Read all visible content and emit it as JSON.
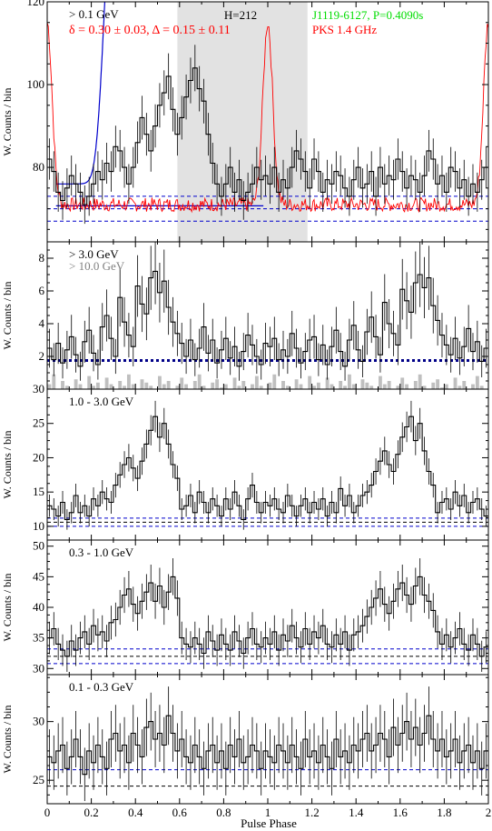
{
  "chart_data": [
    {
      "type": "line",
      "panel": "top",
      "ylabel": "W. Counts / bin",
      "ylim": [
        62,
        120
      ],
      "yticks": [
        80,
        100,
        120
      ],
      "energy_label": "> 0.1 GeV",
      "annotation_h": "H=212",
      "stats": "δ = 0.30 ± 0.03, Δ = 0.15 ± 0.11",
      "pulsar": "J1119-6127, P=0.4090s",
      "radio_label": "PKS 1.4 GHz",
      "offpulse_region": [
        0.59,
        1.18
      ],
      "background_levels": [
        73,
        70,
        67
      ],
      "colors": {
        "stats": "#ff0000",
        "radio": "#ff0000",
        "pulsar": "#00dd00",
        "fit": "#0000cc",
        "shade": "#e2e2e2"
      },
      "series": [
        {
          "name": "> 0.1 GeV",
          "x_range": [
            0,
            2
          ],
          "values": [
            82,
            79,
            74,
            72,
            75,
            78,
            76,
            74,
            71,
            73,
            76,
            79,
            77,
            81,
            79,
            85,
            84,
            80,
            76,
            80,
            86,
            92,
            88,
            84,
            90,
            95,
            98,
            102,
            94,
            88,
            92,
            97,
            101,
            104,
            99,
            96,
            88,
            81,
            76,
            73,
            76,
            80,
            74,
            77,
            72,
            74,
            76,
            80,
            77,
            78,
            76,
            80,
            74,
            77,
            75,
            80,
            84,
            82,
            79,
            75,
            82,
            79,
            74,
            77,
            76,
            79,
            78,
            75,
            73,
            77,
            80,
            75,
            76,
            79,
            73,
            80,
            76,
            78,
            77,
            82,
            79,
            75,
            78,
            77,
            74,
            78,
            84,
            82,
            76,
            78,
            74,
            80,
            79,
            75,
            77,
            73,
            76,
            74,
            77,
            80
          ]
        }
      ]
    },
    {
      "type": "line",
      "panel": "p2",
      "ylabel": "W. Counts / bin",
      "ylim": [
        0,
        9
      ],
      "yticks": [
        2,
        4,
        6,
        8
      ],
      "energy_label": "> 3.0 GeV",
      "energy_label_2": "> 10.0 GeV",
      "background_levels": [
        1.75
      ],
      "series": [
        {
          "name": "> 3.0 GeV",
          "x_range": [
            0,
            2
          ],
          "values": [
            2.5,
            1.8,
            2.8,
            1.6,
            2.4,
            3.2,
            2.1,
            1.4,
            2.9,
            3.6,
            2.2,
            1.5,
            3.8,
            4.5,
            3.1,
            2.0,
            5.6,
            4.1,
            3.3,
            2.6,
            6.3,
            5.2,
            4.6,
            6.8,
            7.2,
            5.9,
            6.6,
            5.0,
            4.1,
            3.4,
            2.8,
            2.0,
            3.0,
            1.8,
            2.5,
            3.8,
            2.2,
            3.0,
            1.6,
            2.4,
            3.1,
            1.9,
            2.6,
            1.4,
            2.3,
            3.3,
            2.7,
            2.0,
            1.5,
            2.8,
            2.6,
            3.1,
            1.8,
            2.4,
            2.0,
            3.4,
            2.5,
            1.6,
            2.3,
            3.0,
            3.2,
            1.8,
            2.7,
            1.5,
            2.6,
            3.6,
            2.3,
            1.4,
            3.0,
            3.9,
            2.4,
            1.7,
            3.5,
            4.4,
            3.2,
            2.1,
            5.3,
            4.0,
            3.4,
            2.7,
            6.1,
            5.4,
            4.7,
            6.5,
            7.0,
            6.2,
            6.8,
            5.1,
            4.2,
            3.3,
            2.7,
            2.1,
            3.1,
            1.9,
            2.6,
            3.7,
            2.3,
            2.9,
            1.7,
            2.5
          ]
        },
        {
          "name": "> 10.0 GeV",
          "x_range": [
            0,
            2
          ],
          "values": [
            0.3,
            0.9,
            0,
            0.5,
            0.2,
            0,
            0.6,
            0.3,
            0,
            0.8,
            0.2,
            0.4,
            0,
            0.7,
            0.3,
            0,
            0.5,
            0.2,
            0.9,
            0.3,
            0,
            0.6,
            0.4,
            0.2,
            0,
            0.8,
            0.3,
            0.5,
            0,
            0.2,
            0.7,
            0.3,
            0,
            0.5,
            0.9,
            0.2,
            0,
            0.4,
            0.6,
            0.1,
            0.3,
            0,
            0.7,
            0.2,
            0.5,
            0,
            0.3,
            0.8,
            0.2,
            0,
            0.4,
            0.9,
            0,
            0.5,
            0.2,
            0,
            0.6,
            0.3,
            0,
            0.8,
            0.2,
            0.4,
            0,
            0.7,
            0.3,
            0,
            0.5,
            0.2,
            0.9,
            0.3,
            0,
            0.6,
            0.4,
            0.2,
            0,
            0.8,
            0.3,
            0.5,
            0,
            0.2,
            0.7,
            0.3,
            0,
            0.5,
            0.9,
            0.2,
            0,
            0.4,
            0.6,
            0.1,
            0.3,
            0,
            0.7,
            0.2,
            0.5,
            0,
            0.3,
            0.8,
            0.2,
            0
          ]
        }
      ]
    },
    {
      "type": "line",
      "panel": "p3",
      "ylabel": "W. Counts / bin",
      "ylim": [
        8,
        30
      ],
      "yticks": [
        10,
        15,
        20,
        25,
        30
      ],
      "energy_label": "1.0 - 3.0 GeV",
      "background_levels": [
        11.2,
        10.6,
        10.0
      ],
      "series": [
        {
          "name": "1.0 - 3.0 GeV",
          "x_range": [
            0,
            2
          ],
          "values": [
            13,
            12.5,
            11.5,
            13.5,
            11,
            12,
            14.5,
            12,
            13,
            11.5,
            14,
            13,
            15,
            14,
            13.5,
            16,
            17.5,
            19,
            20,
            18.5,
            17,
            19.5,
            22,
            24,
            26,
            23,
            25,
            22,
            19,
            17,
            12.5,
            13,
            14.5,
            12,
            15,
            13.5,
            12,
            14,
            13,
            11.5,
            14,
            12.5,
            15,
            13,
            11,
            14,
            16,
            13.5,
            12,
            13.5,
            13,
            14,
            12.5,
            12,
            14.5,
            13,
            11.5,
            13,
            14,
            12,
            13.5,
            12.5,
            14,
            11.5,
            13.5,
            12,
            15.5,
            13,
            14.5,
            12,
            13,
            14.5,
            15,
            16,
            18,
            19.5,
            21,
            19,
            18,
            20.5,
            23,
            24.5,
            26,
            22.5,
            25,
            21,
            18,
            16,
            12,
            13.5,
            14,
            12.5,
            15,
            13,
            14.5,
            12,
            13.5,
            14,
            12.5,
            11.5
          ]
        }
      ]
    },
    {
      "type": "line",
      "panel": "p4",
      "ylabel": "W. Counts / bin",
      "ylim": [
        29,
        51
      ],
      "yticks": [
        30,
        35,
        40,
        45,
        50
      ],
      "energy_label": "0.3 - 1.0 GeV",
      "background_levels": [
        33.2,
        32.0,
        30.8
      ],
      "series": [
        {
          "name": "0.3 - 1.0 GeV",
          "x_range": [
            0,
            2
          ],
          "values": [
            35,
            36.5,
            34,
            33,
            32,
            34.5,
            33,
            35,
            36,
            34,
            37,
            35.5,
            36,
            34.5,
            37.5,
            38,
            40,
            42,
            43,
            40.5,
            39,
            41,
            42.5,
            44,
            41,
            43.5,
            40,
            42.5,
            45,
            41.5,
            35,
            34,
            33.5,
            35,
            34,
            32.5,
            36,
            34.5,
            33,
            35.5,
            34,
            33,
            36,
            34.5,
            32.5,
            35,
            36.5,
            34,
            33.5,
            35,
            34,
            36,
            33,
            35.5,
            34.5,
            37,
            35,
            33.5,
            36.5,
            34,
            36,
            35,
            37,
            34,
            33.5,
            35.5,
            34,
            36,
            33,
            35.5,
            36,
            37,
            38.5,
            40,
            41.5,
            43,
            40.5,
            39,
            41,
            43,
            44,
            42,
            40.5,
            43.5,
            45,
            42,
            41,
            39.5,
            36,
            34,
            35.5,
            33.5,
            35,
            36.5,
            34,
            33,
            35.5,
            34,
            32,
            33.5
          ]
        }
      ]
    },
    {
      "type": "line",
      "panel": "p5",
      "xlabel": "Pulse Phase",
      "ylabel": "W. Counts / bin",
      "ylim": [
        23,
        34
      ],
      "yticks": [
        25,
        30
      ],
      "xticks": [
        0,
        0.2,
        0.4,
        0.6,
        0.8,
        1,
        1.2,
        1.4,
        1.6,
        1.8,
        2
      ],
      "energy_label": "0.1 - 0.3 GeV",
      "background_levels": [
        25.9,
        24.5
      ],
      "series": [
        {
          "name": "0.1 - 0.3 GeV",
          "x_range": [
            0,
            2
          ],
          "values": [
            27,
            26.5,
            27.5,
            28,
            26,
            27,
            28.5,
            27,
            25.5,
            27.5,
            26.5,
            28,
            27,
            26,
            28.5,
            29,
            27.5,
            28,
            26.5,
            29,
            28,
            27,
            29.5,
            30,
            28.5,
            29,
            28,
            30.5,
            29,
            27.5,
            28.5,
            27,
            26.5,
            28,
            27,
            26,
            27.5,
            28,
            26.5,
            27.5,
            26,
            28,
            27,
            28.5,
            26.5,
            27,
            28,
            27.5,
            26,
            27.5,
            27,
            26.5,
            28,
            27.5,
            26.5,
            28,
            27,
            26,
            28.5,
            27,
            27.5,
            26.5,
            28,
            27,
            26,
            28.5,
            27,
            27.5,
            26.5,
            28,
            27.5,
            28.5,
            29,
            27.5,
            28,
            29,
            28.5,
            27,
            29.5,
            28,
            29,
            30,
            28.5,
            29.5,
            28,
            29,
            30.5,
            28.5,
            27.5,
            28.5,
            27,
            27.5,
            28.5,
            26.5,
            27.5,
            28,
            26.5,
            27.5,
            26,
            27.5
          ]
        }
      ]
    }
  ]
}
